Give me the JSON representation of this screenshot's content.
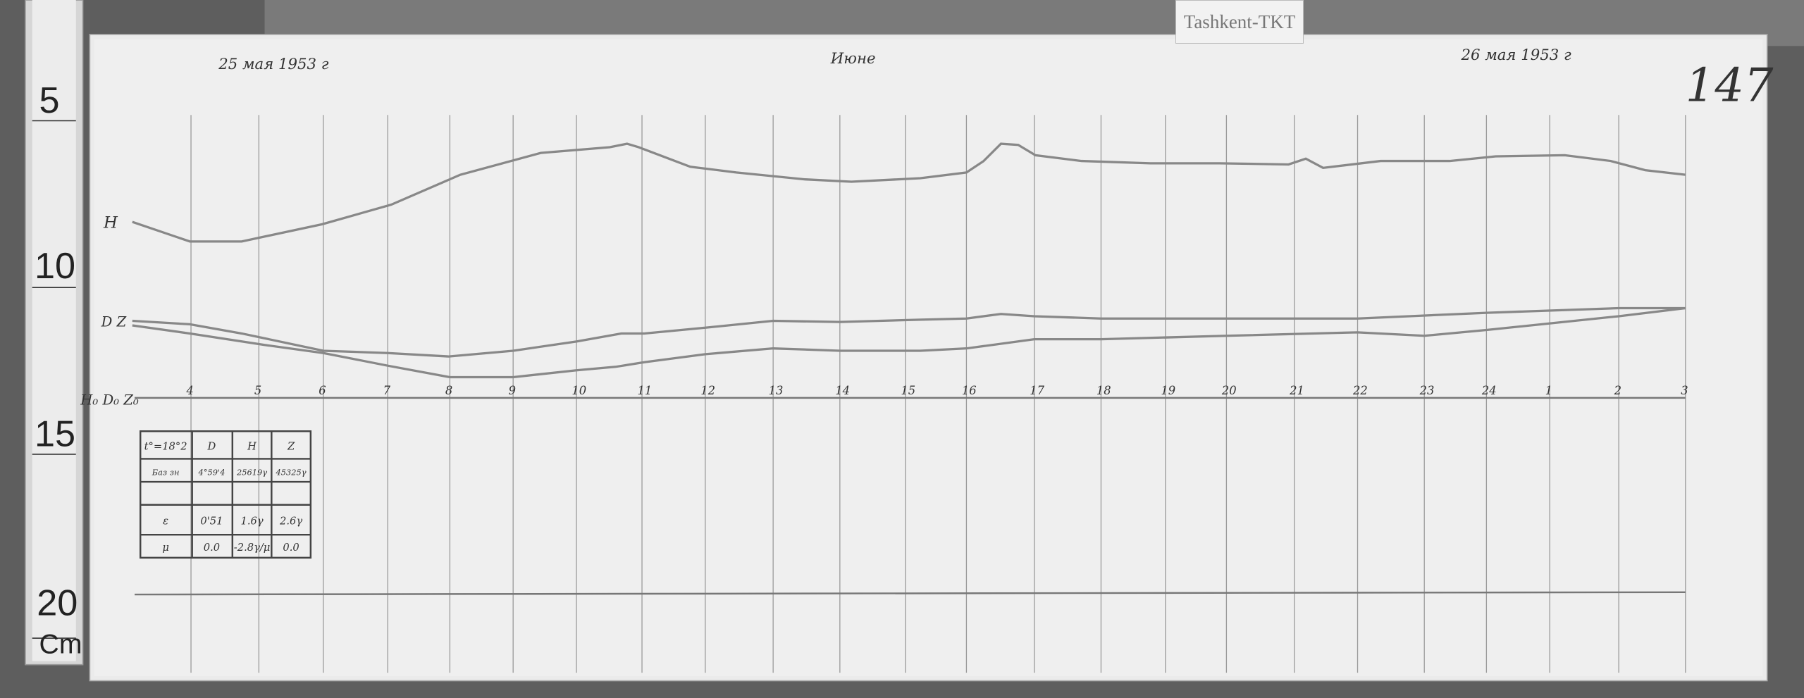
{
  "station_label": "Tashkent-TKT",
  "sheet_number": "147",
  "date_start": "25 мая 1953 г",
  "date_end": "26 мая 1953 г",
  "month_note": "Июне",
  "ruler": {
    "marks": [
      "5",
      "10",
      "15",
      "20"
    ],
    "unit": "Cm"
  },
  "traces": {
    "h_label": "H",
    "dz_label": "D Z",
    "baseline_label": "H₀ D₀ Z₀"
  },
  "hours": [
    "4",
    "5",
    "6",
    "7",
    "8",
    "9",
    "10",
    "11",
    "12",
    "13",
    "14",
    "15",
    "16",
    "17",
    "18",
    "19",
    "20",
    "21",
    "22",
    "23",
    "24",
    "1",
    "2",
    "3"
  ],
  "table": {
    "header": [
      "t°=18°2",
      "D",
      "H",
      "Z"
    ],
    "rows": [
      [
        "Баз зн",
        "4°59'4",
        "25619γ",
        "45325γ"
      ],
      [
        "",
        "",
        "",
        ""
      ],
      [
        "ε",
        "0'51",
        "1.6γ",
        "2.6γ"
      ],
      [
        "μ",
        "0.0",
        "-2.8γ/μ",
        "0.0"
      ]
    ]
  }
}
